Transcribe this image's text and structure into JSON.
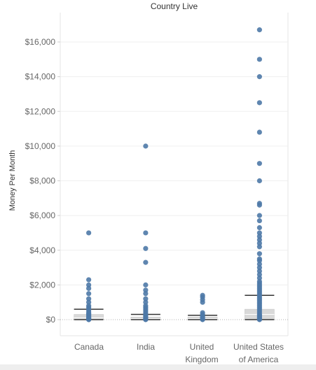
{
  "chart_data": {
    "type": "scatter",
    "subtype": "box-and-whisker with jittered dots",
    "title": "Country Live",
    "xlabel": "",
    "ylabel": "Money Per Month",
    "ylim": [
      -1000,
      17500
    ],
    "yticks": [
      0,
      2000,
      4000,
      6000,
      8000,
      10000,
      12000,
      14000,
      16000
    ],
    "ytick_labels": [
      "$0",
      "$2,000",
      "$4,000",
      "$6,000",
      "$8,000",
      "$10,000",
      "$12,000",
      "$14,000",
      "$16,000"
    ],
    "categories": [
      "Canada",
      "India",
      "United\nKingdom",
      "United States\nof America"
    ],
    "grid": "horizontal",
    "colors": {
      "dot": "#4e79a7",
      "box_fill": "#d9d9d9",
      "whisker": "#333333",
      "zero_line": "#b0b0b0"
    },
    "series": [
      {
        "values": [
          0,
          10,
          25,
          50,
          80,
          100,
          150,
          200,
          250,
          300,
          350,
          400,
          500,
          600,
          700,
          800,
          1000,
          1200,
          1500,
          1800,
          2000,
          2300,
          5000
        ],
        "box": {
          "q1": 0,
          "median": 100,
          "q3": 300,
          "upper_whisker": 600,
          "lower_whisker": 0
        }
      },
      {
        "values": [
          0,
          10,
          30,
          50,
          100,
          150,
          200,
          250,
          300,
          400,
          500,
          600,
          700,
          800,
          1000,
          1200,
          1500,
          1700,
          2000,
          3300,
          4100,
          5000,
          10000
        ],
        "box": {
          "q1": 0,
          "median": 50,
          "q3": 150,
          "upper_whisker": 300,
          "lower_whisker": 0
        }
      },
      {
        "values": [
          0,
          20,
          50,
          100,
          150,
          200,
          300,
          400,
          1000,
          1150,
          1300,
          1400
        ],
        "box": {
          "q1": 0,
          "median": 50,
          "q3": 150,
          "upper_whisker": 250,
          "lower_whisker": 0
        }
      },
      {
        "values": [
          0,
          20,
          50,
          100,
          150,
          200,
          250,
          300,
          400,
          500,
          600,
          700,
          800,
          900,
          1000,
          1100,
          1200,
          1300,
          1400,
          1500,
          1600,
          1700,
          1800,
          1900,
          2000,
          2100,
          2200,
          2400,
          2600,
          2800,
          3000,
          3200,
          3400,
          3500,
          3800,
          4200,
          4400,
          4600,
          4800,
          5000,
          5300,
          5700,
          6000,
          6600,
          6700,
          8000,
          9000,
          10800,
          12500,
          14000,
          15000,
          16700
        ],
        "box": {
          "q1": 0,
          "median": 300,
          "q3": 600,
          "upper_whisker": 1400,
          "lower_whisker": 0
        }
      }
    ]
  }
}
